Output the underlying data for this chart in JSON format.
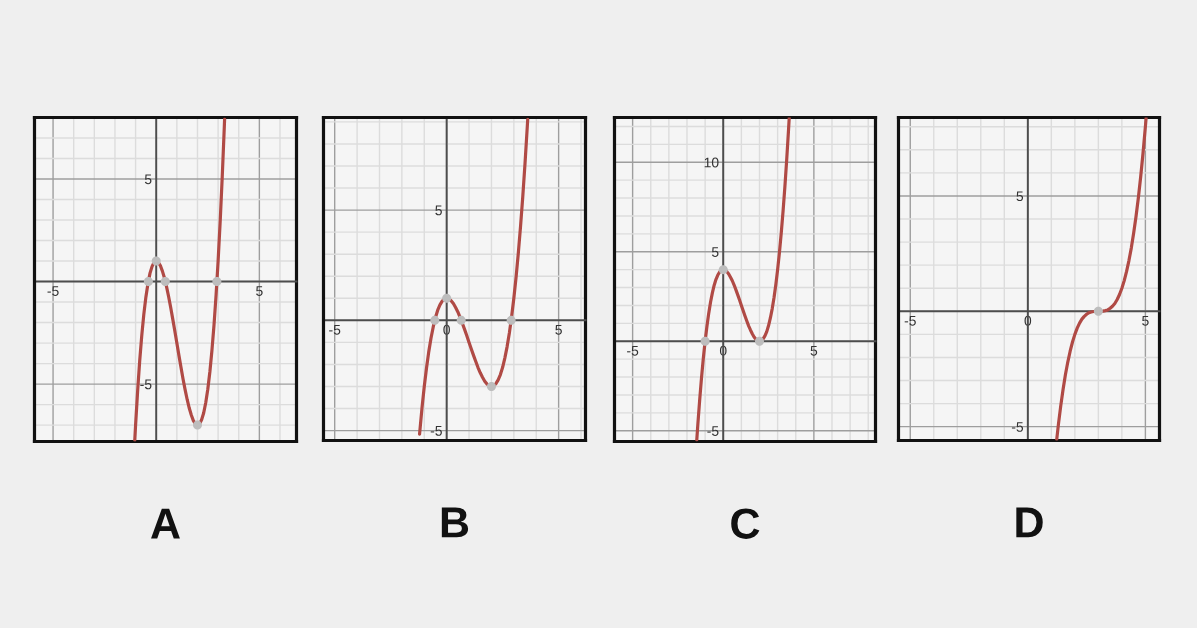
{
  "chart_data": [
    {
      "type": "line",
      "title": "A",
      "xlim": [
        -5.9,
        6.8
      ],
      "ylim": [
        -7.8,
        8
      ],
      "xticks": [
        -5,
        {
          "value": -4,
          "label": null
        },
        {
          "value": -3,
          "label": null
        },
        {
          "value": -2,
          "label": null
        },
        {
          "value": -1,
          "label": null
        },
        {
          "value": 0,
          "label": null
        },
        {
          "value": 1,
          "label": null
        },
        {
          "value": 2,
          "label": null
        },
        {
          "value": 3,
          "label": null
        },
        {
          "value": 4,
          "label": null
        },
        5,
        {
          "value": 6,
          "label": null
        }
      ],
      "yticks": [
        {
          "value": -7,
          "label": null
        },
        {
          "value": -6,
          "label": null
        },
        -5,
        {
          "value": -4,
          "label": null
        },
        {
          "value": -3,
          "label": null
        },
        {
          "value": -2,
          "label": null
        },
        {
          "value": -1,
          "label": null
        },
        {
          "value": 0,
          "label": null
        },
        {
          "value": 1,
          "label": null
        },
        {
          "value": 2,
          "label": null
        },
        {
          "value": 3,
          "label": null
        },
        {
          "value": 4,
          "label": null
        },
        5,
        {
          "value": 6,
          "label": null
        },
        {
          "value": 7,
          "label": null
        }
      ],
      "grid": true,
      "series": [
        {
          "color": "#b04a45",
          "x": [
            -1.04,
            -1.0,
            -0.9,
            -0.8,
            -0.7,
            -0.6,
            -0.5,
            -0.4,
            -0.3,
            -0.2,
            -0.1,
            0,
            0.1,
            0.2,
            0.3,
            0.4,
            0.5,
            0.6,
            0.7,
            0.8,
            0.9,
            1.0,
            1.1,
            1.2,
            1.3,
            1.4,
            1.5,
            1.6,
            1.7,
            1.8,
            1.9,
            2.0,
            2.1,
            2.2,
            2.3,
            2.4,
            2.5,
            2.6,
            2.7,
            2.8,
            2.9,
            3.0,
            3.1,
            3.2,
            3.3,
            3.315
          ],
          "values": [
            -7.74,
            -7,
            -5.32,
            -3.86,
            -2.63,
            -1.59,
            -0.75,
            -0.09,
            0.41,
            0.74,
            0.94,
            1,
            0.94,
            0.78,
            0.51,
            0.17,
            -0.25,
            -0.73,
            -1.25,
            -1.82,
            -2.4,
            -3,
            -3.6,
            -4.18,
            -4.75,
            -5.27,
            -5.75,
            -6.17,
            -6.51,
            -6.78,
            -6.94,
            -7,
            -6.94,
            -6.74,
            -6.41,
            -5.91,
            -5.25,
            -4.41,
            -3.37,
            -2.14,
            -0.68,
            1,
            2.92,
            5.1,
            7.53,
            7.92
          ]
        },
        {
          "type": "scatter",
          "marker": "circle",
          "color": "#bdbdbd",
          "x": [
            -0.38,
            0,
            0.44,
            2,
            2.94
          ],
          "values": [
            0,
            1,
            0,
            -7,
            0
          ]
        }
      ]
    },
    {
      "type": "line",
      "title": "B",
      "xlim": [
        -5.5,
        6.2
      ],
      "ylim": [
        -5.45,
        9.2
      ],
      "xticks": [
        -5,
        {
          "value": -4,
          "label": null
        },
        {
          "value": -3,
          "label": null
        },
        {
          "value": -2,
          "label": null
        },
        {
          "value": -1,
          "label": null
        },
        0,
        {
          "value": 1,
          "label": null
        },
        {
          "value": 2,
          "label": null
        },
        {
          "value": 3,
          "label": null
        },
        {
          "value": 4,
          "label": null
        },
        5,
        {
          "value": 6,
          "label": null
        }
      ],
      "yticks": [
        -5,
        {
          "value": -4,
          "label": null
        },
        {
          "value": -3,
          "label": null
        },
        {
          "value": -2,
          "label": null
        },
        {
          "value": -1,
          "label": null
        },
        {
          "value": 0,
          "label": null
        },
        {
          "value": 1,
          "label": null
        },
        {
          "value": 2,
          "label": null
        },
        {
          "value": 3,
          "label": null
        },
        {
          "value": 4,
          "label": null
        },
        5,
        {
          "value": 6,
          "label": null
        },
        {
          "value": 7,
          "label": null
        },
        {
          "value": 8,
          "label": null
        },
        {
          "value": 9,
          "label": null
        }
      ],
      "grid": true,
      "series": [
        {
          "color": "#b04a45",
          "x": [
            -1.21,
            -1.1,
            -1.0,
            -0.9,
            -0.8,
            -0.7,
            -0.6,
            -0.5,
            -0.4,
            -0.3,
            -0.2,
            -0.1,
            0,
            0.1,
            0.2,
            0.3,
            0.4,
            0.5,
            0.6,
            0.7,
            0.8,
            0.9,
            1.0,
            1.1,
            1.2,
            1.3,
            1.4,
            1.5,
            1.6,
            1.7,
            1.8,
            1.9,
            2.0,
            2.1,
            2.2,
            2.3,
            2.4,
            2.5,
            2.6,
            2.7,
            2.8,
            2.9,
            3.0,
            3.1,
            3.2,
            3.3,
            3.4,
            3.5,
            3.6,
            3.62
          ],
          "values": [
            -5.16,
            -3.96,
            -3,
            -2.16,
            -1.43,
            -0.81,
            -0.3,
            0.13,
            0.46,
            0.7,
            0.87,
            0.97,
            1,
            0.97,
            0.89,
            0.76,
            0.58,
            0.38,
            0.14,
            -0.13,
            -0.41,
            -0.7,
            -1,
            -1.3,
            -1.59,
            -1.87,
            -2.14,
            -2.38,
            -2.58,
            -2.76,
            -2.89,
            -2.97,
            -3,
            -2.97,
            -2.87,
            -2.7,
            -2.46,
            -2.13,
            -1.7,
            -1.19,
            -0.57,
            0.16,
            1,
            1.96,
            3.05,
            4.27,
            5.62,
            7.13,
            8.78,
            9.12
          ]
        },
        {
          "type": "scatter",
          "marker": "circle",
          "color": "#bdbdbd",
          "x": [
            -0.53,
            0,
            0.65,
            2,
            2.88
          ],
          "values": [
            0,
            1,
            0,
            -3,
            0
          ]
        }
      ]
    },
    {
      "type": "line",
      "title": "C",
      "xlim": [
        -6,
        8.4
      ],
      "ylim": [
        -5.6,
        12.5
      ],
      "xticks": [
        -5,
        {
          "value": -4,
          "label": null
        },
        {
          "value": -3,
          "label": null
        },
        {
          "value": -2,
          "label": null
        },
        {
          "value": -1,
          "label": null
        },
        0,
        {
          "value": 1,
          "label": null
        },
        {
          "value": 2,
          "label": null
        },
        {
          "value": 3,
          "label": null
        },
        {
          "value": 4,
          "label": null
        },
        5,
        {
          "value": 6,
          "label": null
        },
        {
          "value": 7,
          "label": null
        },
        {
          "value": 8,
          "label": null
        }
      ],
      "yticks": [
        -5,
        {
          "value": -4,
          "label": null
        },
        {
          "value": -3,
          "label": null
        },
        {
          "value": -2,
          "label": null
        },
        {
          "value": -1,
          "label": null
        },
        {
          "value": 0,
          "label": null
        },
        {
          "value": 1,
          "label": null
        },
        {
          "value": 2,
          "label": null
        },
        {
          "value": 3,
          "label": null
        },
        {
          "value": 4,
          "label": null
        },
        5,
        {
          "value": 6,
          "label": null
        },
        {
          "value": 7,
          "label": null
        },
        {
          "value": 8,
          "label": null
        },
        {
          "value": 9,
          "label": null
        },
        10,
        {
          "value": 11,
          "label": null
        },
        {
          "value": 12,
          "label": null
        }
      ],
      "grid": true,
      "series": [
        {
          "color": "#b04a45",
          "x": [
            -1.46,
            -1.4,
            -1.3,
            -1.2,
            -1.1,
            -1.0,
            -0.9,
            -0.8,
            -0.7,
            -0.6,
            -0.5,
            -0.4,
            -0.3,
            -0.2,
            -0.1,
            0,
            0.1,
            0.2,
            0.3,
            0.4,
            0.5,
            0.6,
            0.7,
            0.8,
            0.9,
            1.0,
            1.1,
            1.2,
            1.3,
            1.4,
            1.5,
            1.6,
            1.7,
            1.8,
            1.9,
            2.0,
            2.1,
            2.2,
            2.3,
            2.4,
            2.5,
            2.6,
            2.7,
            2.8,
            2.9,
            3.0,
            3.1,
            3.2,
            3.3,
            3.4,
            3.5,
            3.6,
            3.64
          ],
          "values": [
            -5.51,
            -4.62,
            -3.27,
            -2.05,
            -0.96,
            0,
            0.84,
            1.57,
            2.19,
            2.7,
            3.13,
            3.46,
            3.7,
            3.87,
            3.97,
            4,
            3.97,
            3.89,
            3.76,
            3.58,
            3.38,
            3.14,
            2.87,
            2.59,
            2.3,
            2,
            1.7,
            1.41,
            1.13,
            0.86,
            0.63,
            0.42,
            0.24,
            0.11,
            0.03,
            0,
            0.03,
            0.13,
            0.3,
            0.54,
            0.88,
            1.3,
            1.81,
            2.43,
            3.16,
            4,
            4.96,
            6.05,
            7.27,
            8.62,
            10.13,
            11.78,
            12.48
          ]
        },
        {
          "type": "scatter",
          "marker": "circle",
          "color": "#bdbdbd",
          "x": [
            -1,
            0,
            2
          ],
          "values": [
            0,
            4,
            0
          ]
        }
      ]
    },
    {
      "type": "line",
      "title": "D",
      "xlim": [
        -5.5,
        5.6
      ],
      "ylim": [
        -5.6,
        8.4
      ],
      "xticks": [
        -5,
        {
          "value": -4,
          "label": null
        },
        {
          "value": -3,
          "label": null
        },
        {
          "value": -2,
          "label": null
        },
        {
          "value": -1,
          "label": null
        },
        0,
        {
          "value": 1,
          "label": null
        },
        {
          "value": 2,
          "label": null
        },
        {
          "value": 3,
          "label": null
        },
        {
          "value": 4,
          "label": null
        },
        5
      ],
      "yticks": [
        -5,
        {
          "value": -4,
          "label": null
        },
        {
          "value": -3,
          "label": null
        },
        {
          "value": -2,
          "label": null
        },
        {
          "value": -1,
          "label": null
        },
        {
          "value": 0,
          "label": null
        },
        {
          "value": 1,
          "label": null
        },
        {
          "value": 2,
          "label": null
        },
        {
          "value": 3,
          "label": null
        },
        {
          "value": 4,
          "label": null
        },
        5,
        {
          "value": 6,
          "label": null
        },
        {
          "value": 7,
          "label": null
        },
        {
          "value": 8,
          "label": null
        }
      ],
      "grid": true,
      "series": [
        {
          "color": "#b04a45",
          "x": [
            1.23,
            1.3,
            1.4,
            1.5,
            1.6,
            1.7,
            1.8,
            1.9,
            2.0,
            2.1,
            2.2,
            2.3,
            2.4,
            2.5,
            2.6,
            2.7,
            2.8,
            2.9,
            3.0,
            3.1,
            3.2,
            3.3,
            3.4,
            3.5,
            3.6,
            3.7,
            3.8,
            3.9,
            4.0,
            4.1,
            4.2,
            4.3,
            4.4,
            4.5,
            4.6,
            4.7,
            4.8,
            4.9,
            5.0,
            5.03
          ],
          "values": [
            -5.55,
            -4.91,
            -4.1,
            -3.38,
            -2.74,
            -2.2,
            -1.73,
            -1.33,
            -1,
            -0.73,
            -0.51,
            -0.34,
            -0.22,
            -0.13,
            -0.06,
            -0.03,
            -0.01,
            0,
            0,
            0,
            0.01,
            0.03,
            0.06,
            0.13,
            0.22,
            0.34,
            0.51,
            0.73,
            1,
            1.33,
            1.73,
            2.2,
            2.74,
            3.38,
            4.1,
            4.91,
            5.83,
            6.86,
            8,
            8.37
          ]
        },
        {
          "type": "scatter",
          "marker": "circle",
          "color": "#bdbdbd",
          "x": [
            3
          ],
          "values": [
            0
          ]
        }
      ]
    }
  ]
}
